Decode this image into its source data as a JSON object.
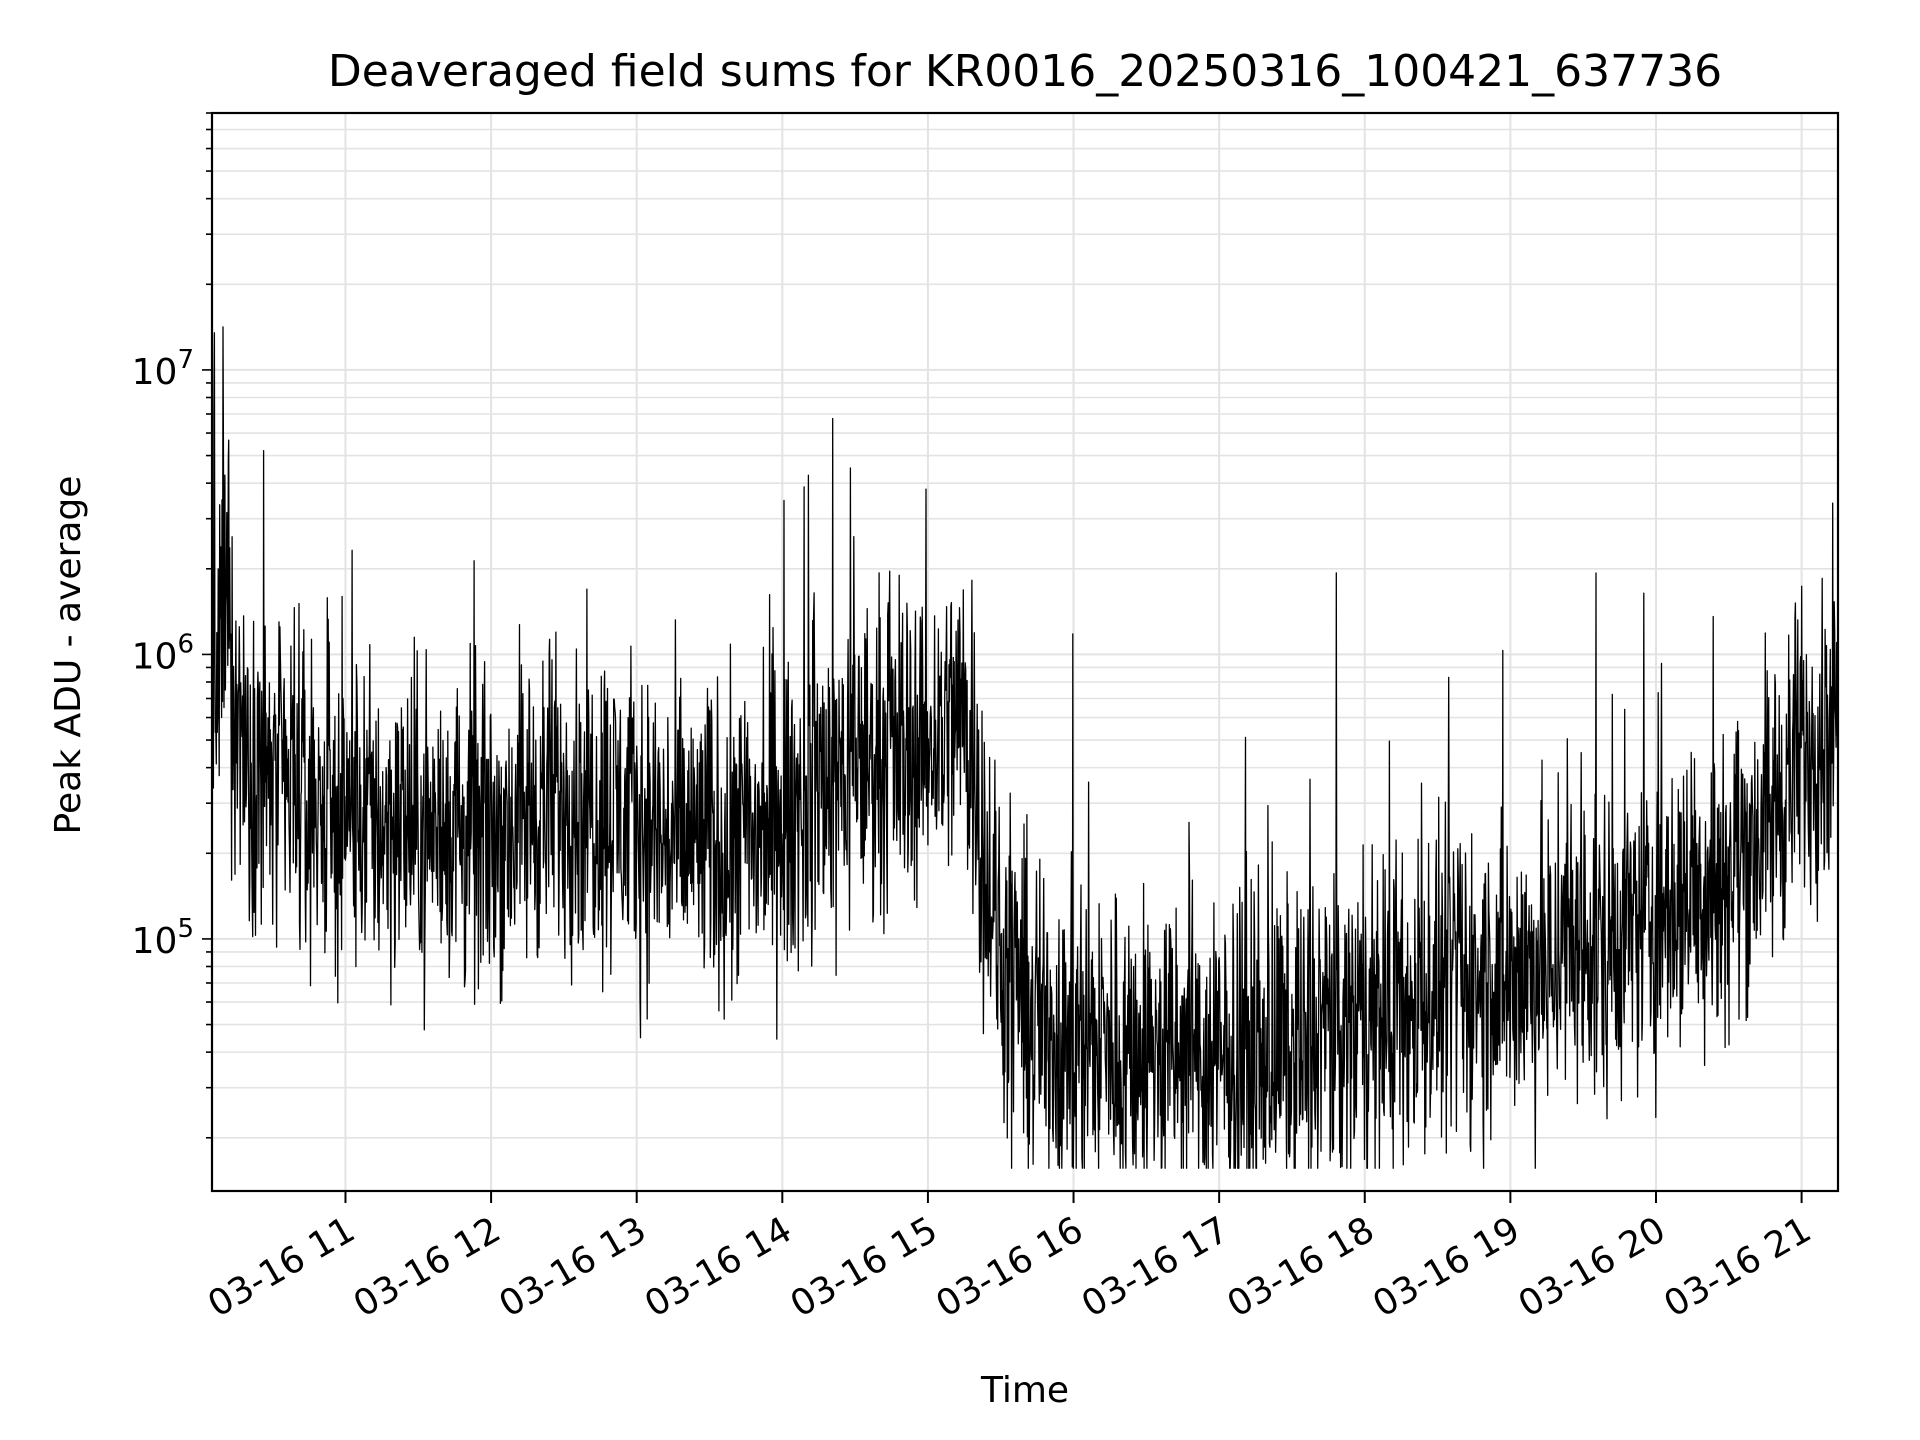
{
  "chart_data": {
    "type": "line",
    "title": "Deaveraged field sums for KR0016_20250316_100421_637736",
    "xlabel": "Time",
    "ylabel": "Peak ADU - average",
    "yscale": "log",
    "ylim": [
      13000,
      80000000
    ],
    "xlim": [
      "03-16 10:05",
      "03-16 21:15"
    ],
    "grid": true,
    "line_color": "#000000",
    "x_ticks": [
      "03-16 11",
      "03-16 12",
      "03-16 13",
      "03-16 14",
      "03-16 15",
      "03-16 16",
      "03-16 17",
      "03-16 18",
      "03-16 19",
      "03-16 20",
      "03-16 21"
    ],
    "y_ticks": [
      {
        "value": 100000,
        "base": "10",
        "exp": "5"
      },
      {
        "value": 1000000,
        "base": "10",
        "exp": "6"
      },
      {
        "value": 10000000,
        "base": "10",
        "exp": "7"
      }
    ],
    "series": [
      {
        "x": [
          "03-16 10:05",
          "03-16 10:10",
          "03-16 10:15",
          "03-16 10:30",
          "03-16 10:45",
          "03-16 11:00",
          "03-16 11:15",
          "03-16 11:30",
          "03-16 11:45",
          "03-16 12:00",
          "03-16 12:15",
          "03-16 12:30",
          "03-16 12:45",
          "03-16 13:00",
          "03-16 13:15",
          "03-16 13:30",
          "03-16 13:45",
          "03-16 14:00",
          "03-16 14:15",
          "03-16 14:30",
          "03-16 14:45",
          "03-16 15:00",
          "03-16 15:15",
          "03-16 15:30",
          "03-16 15:45",
          "03-16 16:00",
          "03-16 16:15",
          "03-16 16:30",
          "03-16 16:45",
          "03-16 17:00",
          "03-16 17:15",
          "03-16 17:30",
          "03-16 17:45",
          "03-16 18:00",
          "03-16 18:15",
          "03-16 18:30",
          "03-16 18:45",
          "03-16 19:00",
          "03-16 19:15",
          "03-16 19:30",
          "03-16 19:45",
          "03-16 20:00",
          "03-16 20:15",
          "03-16 20:30",
          "03-16 20:45",
          "03-16 21:00",
          "03-16 21:15"
        ],
        "y": [
          400000,
          1500000,
          600000,
          350000,
          300000,
          280000,
          260000,
          250000,
          240000,
          230000,
          280000,
          320000,
          300000,
          260000,
          220000,
          220000,
          230000,
          250000,
          360000,
          420000,
          480000,
          500000,
          650000,
          80000,
          50000,
          45000,
          42000,
          40000,
          38000,
          35000,
          38000,
          42000,
          48000,
          50000,
          55000,
          65000,
          70000,
          75000,
          80000,
          90000,
          100000,
          120000,
          150000,
          180000,
          250000,
          450000,
          650000
        ]
      }
    ]
  }
}
